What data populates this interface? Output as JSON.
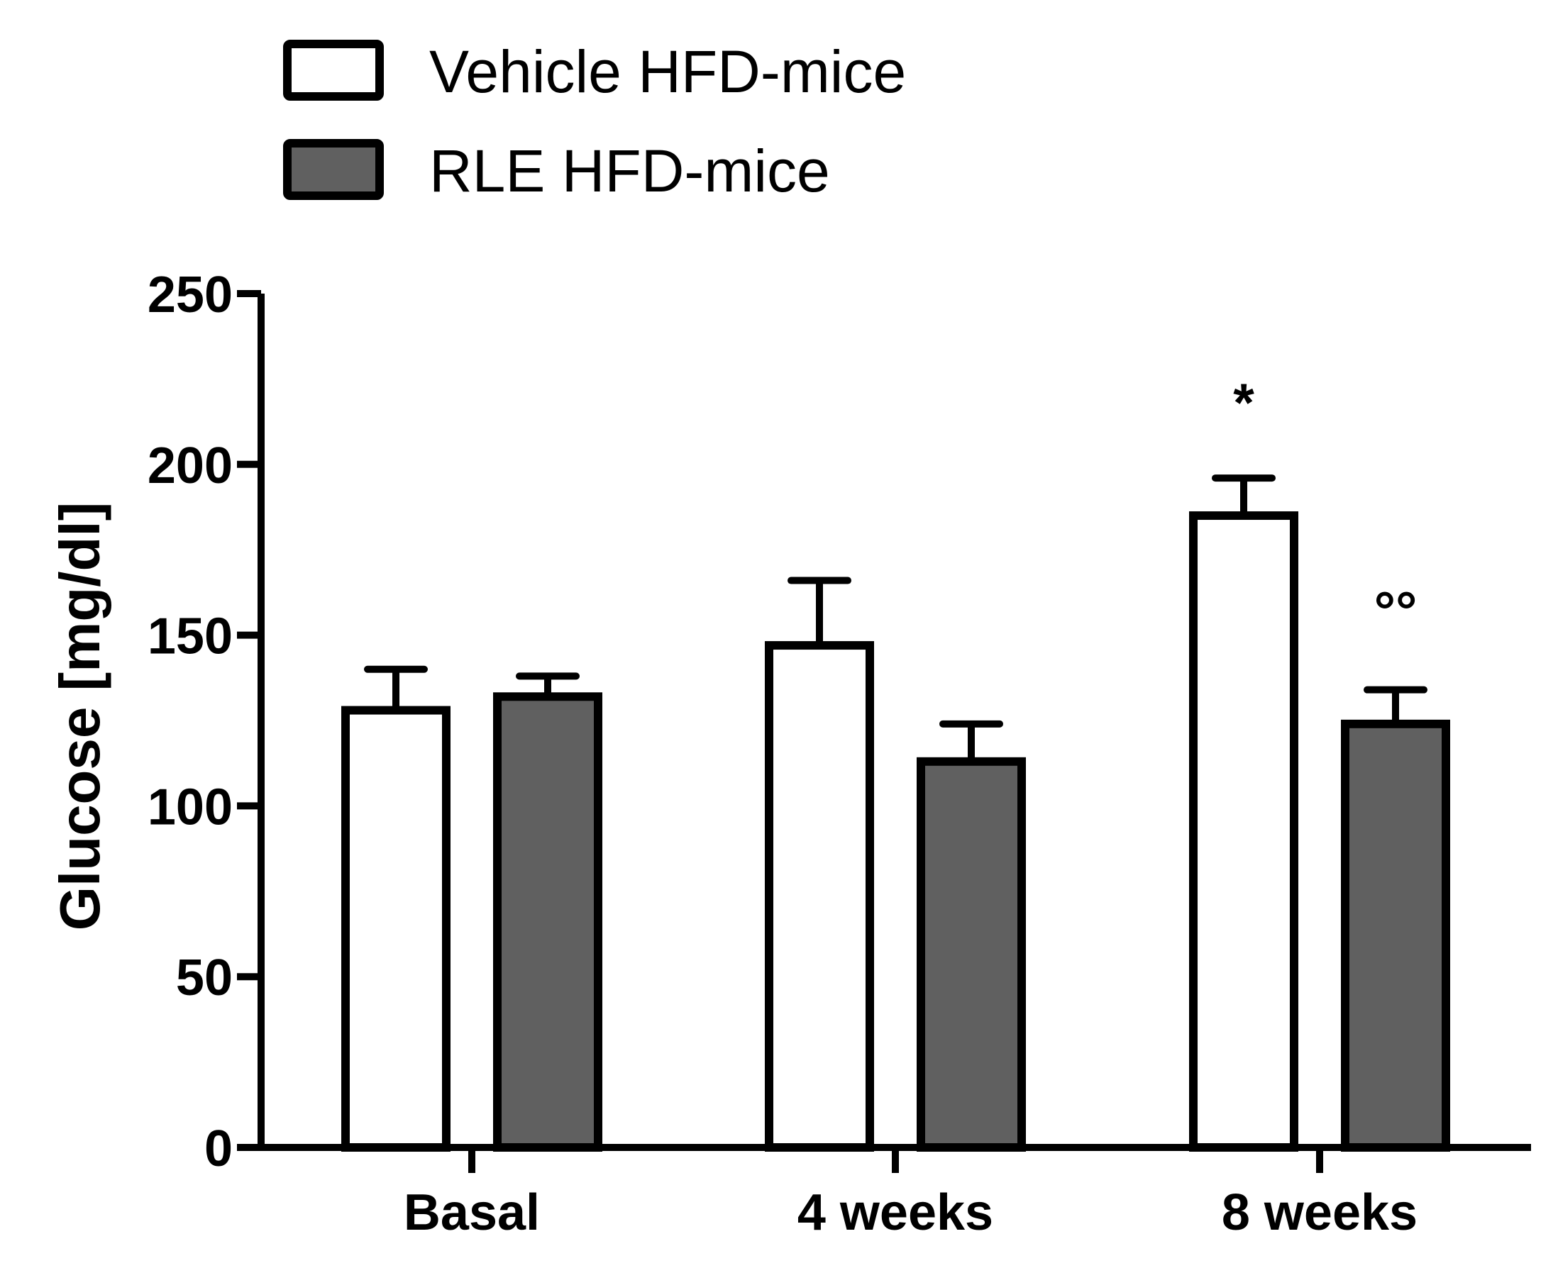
{
  "chart_data": {
    "type": "bar",
    "title": "",
    "xlabel": "",
    "ylabel": "Glucose [mg/dl]",
    "ylim": [
      0,
      250
    ],
    "yticks": [
      0,
      50,
      100,
      150,
      200,
      250
    ],
    "categories": [
      "Basal",
      "4 weeks",
      "8 weeks"
    ],
    "series": [
      {
        "name": "Vehicle HFD-mice",
        "color": "#ffffff",
        "values": [
          128,
          147,
          185
        ],
        "errors": [
          12,
          19,
          11
        ]
      },
      {
        "name": "RLE HFD-mice",
        "color": "#606060",
        "values": [
          132,
          113,
          124
        ],
        "errors": [
          6,
          11,
          10
        ]
      }
    ],
    "annotations": [
      {
        "category": "8 weeks",
        "series": "Vehicle HFD-mice",
        "text": "*"
      },
      {
        "category": "8 weeks",
        "series": "RLE HFD-mice",
        "text": "°°"
      }
    ],
    "legend_position": "top-left",
    "grid": false
  }
}
